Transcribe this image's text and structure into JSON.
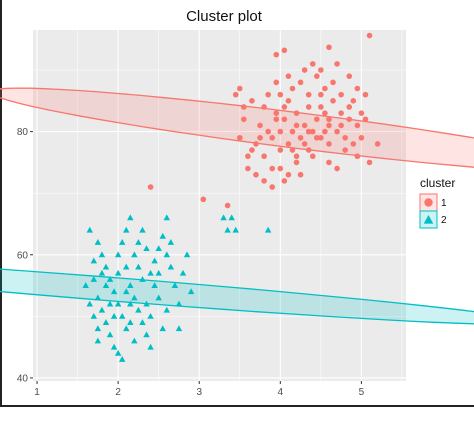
{
  "chart_data": {
    "type": "scatter",
    "title": "Cluster plot",
    "xlabel": "",
    "ylabel": "",
    "xlim": [
      0.95,
      5.55
    ],
    "ylim": [
      39.5,
      96.5
    ],
    "xticks": [
      1,
      2,
      3,
      4,
      5
    ],
    "yticks": [
      40,
      60,
      80
    ],
    "grid": true,
    "legend": {
      "title": "cluster",
      "placement": "right",
      "entries": [
        {
          "label": "1",
          "shape": "circle"
        },
        {
          "label": "2",
          "shape": "triangle"
        }
      ]
    },
    "colors": {
      "cluster_1": "#F8766D",
      "cluster_2": "#00BFC4",
      "panel_bg": "#EBEBEB",
      "grid": "#FFFFFF"
    },
    "ellipses": [
      {
        "cluster": "1",
        "center": [
          4.2,
          80.2
        ],
        "semi_axes": [
          1.43,
          7.7
        ],
        "angle_deg": 27.5
      },
      {
        "cluster": "2",
        "center": [
          2.03,
          54.3
        ],
        "semi_axes": [
          1.3,
          7.5
        ],
        "angle_deg": 42
      }
    ],
    "series": [
      {
        "name": "1",
        "marker": "circle",
        "points": [
          [
            2.4,
            71
          ],
          [
            3.05,
            69
          ],
          [
            3.35,
            68
          ],
          [
            3.95,
            92.5
          ],
          [
            4.05,
            93.2
          ],
          [
            4.6,
            93.7
          ],
          [
            5.1,
            95.6
          ],
          [
            3.45,
            86
          ],
          [
            3.5,
            87
          ],
          [
            4.95,
            76
          ],
          [
            5.1,
            75
          ],
          [
            5.2,
            78
          ],
          [
            3.5,
            79
          ],
          [
            3.55,
            82
          ],
          [
            3.6,
            76
          ],
          [
            3.7,
            78
          ],
          [
            3.75,
            81
          ],
          [
            3.8,
            84
          ],
          [
            3.85,
            86
          ],
          [
            3.9,
            79
          ],
          [
            3.95,
            83
          ],
          [
            4.0,
            77
          ],
          [
            4.0,
            80
          ],
          [
            4.05,
            82
          ],
          [
            4.1,
            78
          ],
          [
            4.1,
            85
          ],
          [
            4.15,
            80
          ],
          [
            4.2,
            83
          ],
          [
            4.2,
            76
          ],
          [
            4.25,
            79
          ],
          [
            4.3,
            81
          ],
          [
            4.35,
            84
          ],
          [
            4.35,
            77
          ],
          [
            4.4,
            80
          ],
          [
            4.45,
            82
          ],
          [
            4.5,
            79
          ],
          [
            4.5,
            86
          ],
          [
            4.55,
            83
          ],
          [
            4.6,
            78
          ],
          [
            4.6,
            81
          ],
          [
            4.65,
            85
          ],
          [
            4.7,
            80
          ],
          [
            4.75,
            83
          ],
          [
            4.8,
            79
          ],
          [
            4.85,
            82
          ],
          [
            4.9,
            85
          ],
          [
            4.95,
            81
          ],
          [
            5.0,
            83
          ],
          [
            3.7,
            73
          ],
          [
            3.8,
            72
          ],
          [
            3.9,
            71
          ],
          [
            4.0,
            74
          ],
          [
            4.1,
            73
          ],
          [
            4.2,
            75
          ],
          [
            3.6,
            74
          ],
          [
            3.65,
            77
          ],
          [
            3.75,
            79
          ],
          [
            3.85,
            80
          ],
          [
            3.95,
            82
          ],
          [
            4.05,
            84
          ],
          [
            4.15,
            87
          ],
          [
            4.25,
            88
          ],
          [
            4.35,
            86
          ],
          [
            4.45,
            89
          ],
          [
            4.55,
            87
          ],
          [
            4.65,
            88
          ],
          [
            4.75,
            86
          ],
          [
            4.85,
            89
          ],
          [
            4.95,
            87
          ],
          [
            5.05,
            86
          ],
          [
            4.3,
            90
          ],
          [
            4.4,
            91
          ],
          [
            4.5,
            90
          ],
          [
            4.7,
            91
          ],
          [
            3.95,
            88
          ],
          [
            4.1,
            89
          ],
          [
            4.6,
            75
          ],
          [
            4.4,
            76
          ],
          [
            4.8,
            77
          ],
          [
            4.7,
            74
          ],
          [
            5.0,
            79
          ],
          [
            3.8,
            76
          ],
          [
            4.0,
            86
          ],
          [
            4.3,
            78
          ],
          [
            4.5,
            84
          ],
          [
            4.2,
            81
          ],
          [
            4.6,
            82
          ],
          [
            4.35,
            80
          ],
          [
            4.45,
            79
          ],
          [
            4.15,
            77
          ],
          [
            3.9,
            74
          ],
          [
            4.05,
            72
          ],
          [
            4.25,
            73
          ],
          [
            4.55,
            80
          ],
          [
            4.75,
            81
          ],
          [
            4.9,
            78
          ],
          [
            5.05,
            82
          ],
          [
            3.55,
            84
          ],
          [
            3.65,
            85
          ],
          [
            4.85,
            84
          ]
        ]
      },
      {
        "name": "2",
        "marker": "triangle",
        "points": [
          [
            3.3,
            66
          ],
          [
            3.4,
            66
          ],
          [
            3.45,
            64
          ],
          [
            3.85,
            64
          ],
          [
            3.35,
            64
          ],
          [
            1.65,
            64
          ],
          [
            1.75,
            62
          ],
          [
            1.8,
            60
          ],
          [
            1.85,
            58
          ],
          [
            1.9,
            56
          ],
          [
            1.95,
            54
          ],
          [
            2.0,
            52
          ],
          [
            2.05,
            50
          ],
          [
            2.1,
            48
          ],
          [
            1.7,
            56
          ],
          [
            1.75,
            53
          ],
          [
            1.8,
            51
          ],
          [
            1.85,
            49
          ],
          [
            1.9,
            47
          ],
          [
            1.95,
            45
          ],
          [
            2.0,
            44
          ],
          [
            2.1,
            58
          ],
          [
            2.15,
            55
          ],
          [
            2.2,
            53
          ],
          [
            2.25,
            51
          ],
          [
            2.3,
            49
          ],
          [
            2.35,
            47
          ],
          [
            2.4,
            57
          ],
          [
            2.45,
            59
          ],
          [
            2.5,
            61
          ],
          [
            2.55,
            63
          ],
          [
            2.6,
            60
          ],
          [
            2.65,
            58
          ],
          [
            2.7,
            55
          ],
          [
            2.75,
            52
          ],
          [
            2.8,
            57
          ],
          [
            2.2,
            60
          ],
          [
            2.25,
            62
          ],
          [
            2.3,
            64
          ],
          [
            2.35,
            61
          ],
          [
            1.6,
            55
          ],
          [
            1.65,
            52
          ],
          [
            1.7,
            50
          ],
          [
            1.75,
            48
          ],
          [
            2.05,
            62
          ],
          [
            2.1,
            64
          ],
          [
            2.15,
            66
          ],
          [
            2.6,
            66
          ],
          [
            2.0,
            57
          ],
          [
            1.85,
            55
          ],
          [
            2.15,
            52
          ],
          [
            2.4,
            50
          ],
          [
            2.5,
            53
          ],
          [
            2.2,
            46
          ],
          [
            2.05,
            43
          ],
          [
            1.9,
            52
          ],
          [
            2.45,
            55
          ],
          [
            2.3,
            56
          ],
          [
            2.65,
            62
          ],
          [
            2.85,
            60
          ],
          [
            1.8,
            57
          ],
          [
            2.0,
            60
          ],
          [
            2.25,
            58
          ],
          [
            2.55,
            48
          ],
          [
            1.95,
            50
          ],
          [
            2.1,
            54
          ],
          [
            2.35,
            52
          ],
          [
            1.7,
            59
          ],
          [
            2.4,
            45
          ],
          [
            2.75,
            48
          ],
          [
            2.9,
            54
          ],
          [
            1.75,
            46
          ],
          [
            2.15,
            49
          ],
          [
            2.5,
            57
          ],
          [
            2.6,
            51
          ]
        ]
      }
    ]
  }
}
